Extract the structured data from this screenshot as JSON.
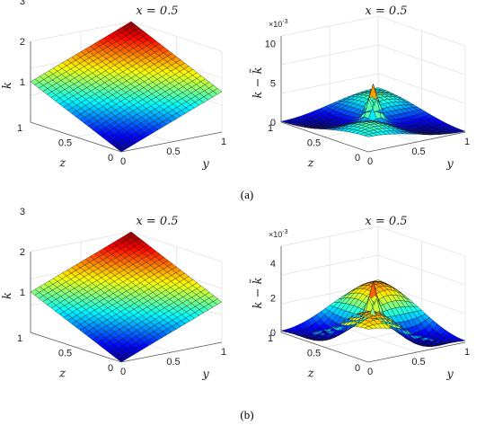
{
  "figure": {
    "caption_a": "(a)",
    "caption_b": "(b)"
  },
  "chart_data": [
    {
      "id": "a-left",
      "type": "surface",
      "title": "x = 0.5",
      "xlabel": "y",
      "ylabel": "z",
      "zlabel": "k",
      "xlim": [
        0,
        1
      ],
      "ylim": [
        0,
        1
      ],
      "zlim": [
        1,
        3
      ],
      "xticks": [
        "0",
        "0.5",
        "1"
      ],
      "yticks": [
        "0",
        "0.5",
        "1"
      ],
      "zticks": [
        "1",
        "2",
        "3"
      ],
      "zscale": "",
      "surface": "k = 1 + y + z (planar)",
      "colormap": "jet",
      "grid": true
    },
    {
      "id": "a-right",
      "type": "surface",
      "title": "x = 0.5",
      "xlabel": "y",
      "ylabel": "z",
      "zlabel": "k − k̃",
      "xlim": [
        0,
        1
      ],
      "ylim": [
        0,
        1
      ],
      "zlim": [
        -1,
        10
      ],
      "xticks": [
        "0",
        "0.5",
        "1"
      ],
      "yticks": [
        "0",
        "0.5",
        "1"
      ],
      "zticks": [
        "0",
        "5",
        "10"
      ],
      "zscale": "×10",
      "zscale_exp": "-3",
      "peak": 4.5,
      "colormap": "jet",
      "grid": true
    },
    {
      "id": "b-left",
      "type": "surface",
      "title": "x = 0.5",
      "xlabel": "y",
      "ylabel": "z",
      "zlabel": "k",
      "xlim": [
        0,
        1
      ],
      "ylim": [
        0,
        1
      ],
      "zlim": [
        1,
        3
      ],
      "xticks": [
        "0",
        "0.5",
        "1"
      ],
      "yticks": [
        "0",
        "0.5",
        "1"
      ],
      "zticks": [
        "1",
        "2",
        "3"
      ],
      "zscale": "",
      "surface": "k = 1 + y + z (planar)",
      "colormap": "jet",
      "grid": true
    },
    {
      "id": "b-right",
      "type": "surface",
      "title": "x = 0.5",
      "xlabel": "y",
      "ylabel": "z",
      "zlabel": "k − k̃",
      "xlim": [
        0,
        1
      ],
      "ylim": [
        0,
        1
      ],
      "zlim": [
        -1,
        4
      ],
      "xticks": [
        "0",
        "0.5",
        "1"
      ],
      "yticks": [
        "0",
        "0.5",
        "1"
      ],
      "zticks": [
        "0",
        "2",
        "4"
      ],
      "zscale": "×10",
      "zscale_exp": "-3",
      "peak": 2.2,
      "colormap": "jet",
      "grid": true
    }
  ]
}
